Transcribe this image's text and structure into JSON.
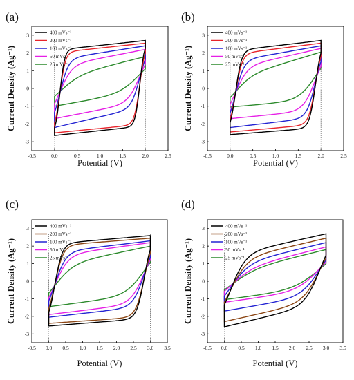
{
  "chart_data": [
    {
      "panel": "(a)",
      "type": "line",
      "xlabel": "Potential (V)",
      "ylabel": "Current Density (Ag⁻¹)",
      "xlim": [
        -0.5,
        2.5
      ],
      "ylim": [
        -3.5,
        3.5
      ],
      "xticks": [
        -0.5,
        0.0,
        0.5,
        1.0,
        1.5,
        2.0,
        2.5
      ],
      "yticks": [
        -3,
        -2,
        -1,
        0,
        1,
        2,
        3
      ],
      "legend_position": "top-left",
      "series": [
        {
          "name": "400 mVs⁻¹",
          "color": "#000000",
          "vmin": 0,
          "vmax": 2.0,
          "top": [
            2.15,
            2.7
          ],
          "bottom": [
            -2.65,
            -2.1
          ],
          "sharp": 6.5
        },
        {
          "name": "200 mVs⁻¹",
          "color": "#e8242b",
          "vmin": 0,
          "vmax": 2.0,
          "top": [
            2.0,
            2.55
          ],
          "bottom": [
            -2.5,
            -2.0
          ],
          "sharp": 5.5
        },
        {
          "name": "100 mVs⁻¹",
          "color": "#2323d2",
          "vmin": 0,
          "vmax": 2.0,
          "top": [
            1.6,
            2.4
          ],
          "bottom": [
            -2.2,
            -1.0
          ],
          "sharp": 3.5
        },
        {
          "name": "50 mVs⁻¹",
          "color": "#e61fe6",
          "vmin": 0,
          "vmax": 2.0,
          "top": [
            1.2,
            2.2
          ],
          "bottom": [
            -1.7,
            -0.7
          ],
          "sharp": 2.5
        },
        {
          "name": "25 mVs⁻¹",
          "color": "#2c8a2c",
          "vmin": 0,
          "vmax": 2.0,
          "top": [
            0.5,
            1.8
          ],
          "bottom": [
            -1.0,
            -0.1
          ],
          "sharp": 1.5
        }
      ]
    },
    {
      "panel": "(b)",
      "type": "line",
      "xlabel": "Potential (V)",
      "ylabel": "Current Density (Ag⁻¹)",
      "xlim": [
        -0.5,
        2.5
      ],
      "ylim": [
        -3.5,
        3.5
      ],
      "xticks": [
        -0.5,
        0.0,
        0.5,
        1.0,
        1.5,
        2.0,
        2.5
      ],
      "yticks": [
        -3,
        -2,
        -1,
        0,
        1,
        2,
        3
      ],
      "legend_position": "top-left",
      "series": [
        {
          "name": "400 mVs⁻¹",
          "color": "#000000",
          "vmin": 0,
          "vmax": 2.0,
          "top": [
            2.1,
            2.7
          ],
          "bottom": [
            -2.6,
            -2.2
          ],
          "sharp": 5.0
        },
        {
          "name": "200 mVs⁻¹",
          "color": "#e8242b",
          "vmin": 0,
          "vmax": 2.0,
          "top": [
            1.9,
            2.55
          ],
          "bottom": [
            -2.45,
            -2.0
          ],
          "sharp": 4.5
        },
        {
          "name": "100 mVs⁻¹",
          "color": "#2323d2",
          "vmin": 0,
          "vmax": 2.0,
          "top": [
            1.5,
            2.4
          ],
          "bottom": [
            -2.2,
            -1.6
          ],
          "sharp": 3.5
        },
        {
          "name": "50 mVs⁻¹",
          "color": "#e61fe6",
          "vmin": 0,
          "vmax": 2.0,
          "top": [
            1.1,
            2.25
          ],
          "bottom": [
            -1.7,
            -1.2
          ],
          "sharp": 2.5
        },
        {
          "name": "25 mVs⁻¹",
          "color": "#2c8a2c",
          "vmin": 0,
          "vmax": 2.0,
          "top": [
            0.5,
            2.05
          ],
          "bottom": [
            -1.05,
            -0.6
          ],
          "sharp": 1.8
        }
      ]
    },
    {
      "panel": "(c)",
      "type": "line",
      "xlabel": "Potential (V)",
      "ylabel": "Current Density (Ag⁻¹)",
      "xlim": [
        -0.5,
        3.5
      ],
      "ylim": [
        -3.5,
        3.5
      ],
      "xticks": [
        -0.5,
        0.0,
        0.5,
        1.0,
        1.5,
        2.0,
        2.5,
        3.0,
        3.5
      ],
      "yticks": [
        -3,
        -2,
        -1,
        0,
        1,
        2,
        3
      ],
      "legend_position": "top-left",
      "series": [
        {
          "name": "400 mVs⁻¹",
          "color": "#000000",
          "vmin": 0,
          "vmax": 3.0,
          "top": [
            2.1,
            2.6
          ],
          "bottom": [
            -2.55,
            -2.1
          ],
          "sharp": 4.5
        },
        {
          "name": "200 mVs⁻¹",
          "color": "#8b4513",
          "vmin": 0,
          "vmax": 3.0,
          "top": [
            2.0,
            2.45
          ],
          "bottom": [
            -2.4,
            -2.0
          ],
          "sharp": 4.0
        },
        {
          "name": "100 mVs⁻¹",
          "color": "#2323d2",
          "vmin": 0,
          "vmax": 3.0,
          "top": [
            1.6,
            2.3
          ],
          "bottom": [
            -2.05,
            -1.4
          ],
          "sharp": 3.0
        },
        {
          "name": "50 mVs⁻¹",
          "color": "#e61fe6",
          "vmin": 0,
          "vmax": 3.0,
          "top": [
            1.4,
            2.2
          ],
          "bottom": [
            -1.9,
            -1.2
          ],
          "sharp": 2.5
        },
        {
          "name": "25 mVs⁻¹",
          "color": "#2c8a2c",
          "vmin": 0,
          "vmax": 3.0,
          "top": [
            0.8,
            2.0
          ],
          "bottom": [
            -1.45,
            -0.7
          ],
          "sharp": 1.8
        }
      ]
    },
    {
      "panel": "(d)",
      "type": "line",
      "xlabel": "Potential (V)",
      "ylabel": "Current Density (Ag⁻¹)",
      "xlim": [
        -0.5,
        3.5
      ],
      "ylim": [
        -3.5,
        3.5
      ],
      "xticks": [
        -0.5,
        0.0,
        0.5,
        1.0,
        1.5,
        2.0,
        2.5,
        3.0,
        3.5
      ],
      "yticks": [
        -3,
        -2,
        -1,
        0,
        1,
        2,
        3
      ],
      "legend_position": "top-left",
      "series": [
        {
          "name": "400 mVs⁻¹",
          "color": "#000000",
          "vmin": 0,
          "vmax": 3.0,
          "top": [
            1.4,
            2.7
          ],
          "bottom": [
            -2.6,
            -1.2
          ],
          "sharp": 2.2
        },
        {
          "name": "200 mVs⁻¹",
          "color": "#8b4513",
          "vmin": 0,
          "vmax": 3.0,
          "top": [
            1.1,
            2.45
          ],
          "bottom": [
            -2.3,
            -1.0
          ],
          "sharp": 2.0
        },
        {
          "name": "100 mVs⁻¹",
          "color": "#2323d2",
          "vmin": 0,
          "vmax": 3.0,
          "top": [
            0.8,
            2.2
          ],
          "bottom": [
            -1.7,
            -0.7
          ],
          "sharp": 1.8
        },
        {
          "name": "50 mVs⁻¹",
          "color": "#e61fe6",
          "vmin": 0,
          "vmax": 3.0,
          "top": [
            0.5,
            1.95
          ],
          "bottom": [
            -1.2,
            -0.4
          ],
          "sharp": 1.5
        },
        {
          "name": "25 mVs⁻¹",
          "color": "#2c8a2c",
          "vmin": 0,
          "vmax": 3.0,
          "top": [
            0.4,
            1.8
          ],
          "bottom": [
            -1.05,
            -0.3
          ],
          "sharp": 1.3
        }
      ]
    }
  ]
}
